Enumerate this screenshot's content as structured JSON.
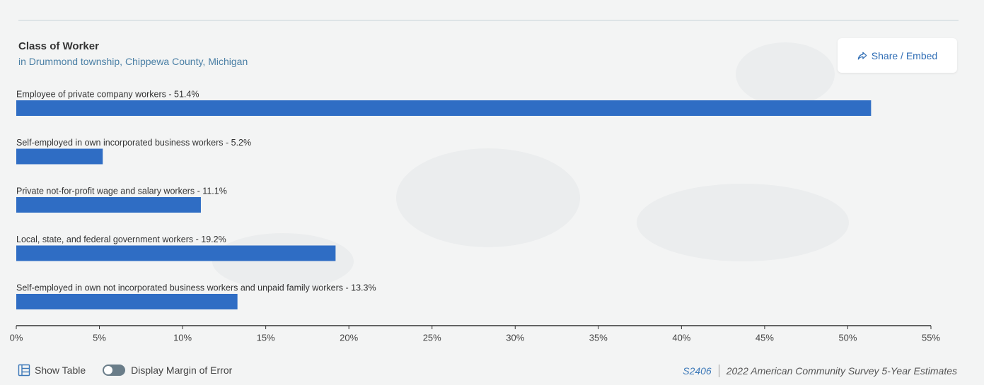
{
  "header": {
    "title": "Class of Worker",
    "subtitle": "in Drummond township, Chippewa County, Michigan",
    "share_label": "Share / Embed"
  },
  "footer": {
    "show_table_label": "Show Table",
    "moe_label": "Display Margin of Error",
    "table_id": "S2406",
    "source_label": "2022 American Community Survey 5-Year Estimates"
  },
  "colors": {
    "bar": "#2f6dc4",
    "axis": "#333333",
    "text": "#333333"
  },
  "chart_data": {
    "type": "bar",
    "orientation": "horizontal",
    "categories": [
      "Employee of private company workers",
      "Self-employed in own incorporated business workers",
      "Private not-for-profit wage and salary workers",
      "Local, state, and federal government workers",
      "Self-employed in own not incorporated business workers and unpaid family workers"
    ],
    "values": [
      51.4,
      5.2,
      11.1,
      19.2,
      13.3
    ],
    "value_labels": [
      "51.4%",
      "5.2%",
      "11.1%",
      "19.2%",
      "13.3%"
    ],
    "bar_labels": [
      "Employee of private company workers - 51.4%",
      "Self-employed in own incorporated business workers - 5.2%",
      "Private not-for-profit wage and salary workers - 11.1%",
      "Local, state, and federal government workers - 19.2%",
      "Self-employed in own not incorporated business workers and unpaid family workers - 13.3%"
    ],
    "xlim": [
      0,
      55
    ],
    "xticks": [
      0,
      5,
      10,
      15,
      20,
      25,
      30,
      35,
      40,
      45,
      50,
      55
    ],
    "xtick_labels": [
      "0%",
      "5%",
      "10%",
      "15%",
      "20%",
      "25%",
      "30%",
      "35%",
      "40%",
      "45%",
      "50%",
      "55%"
    ],
    "grid": false,
    "legend": "none"
  }
}
